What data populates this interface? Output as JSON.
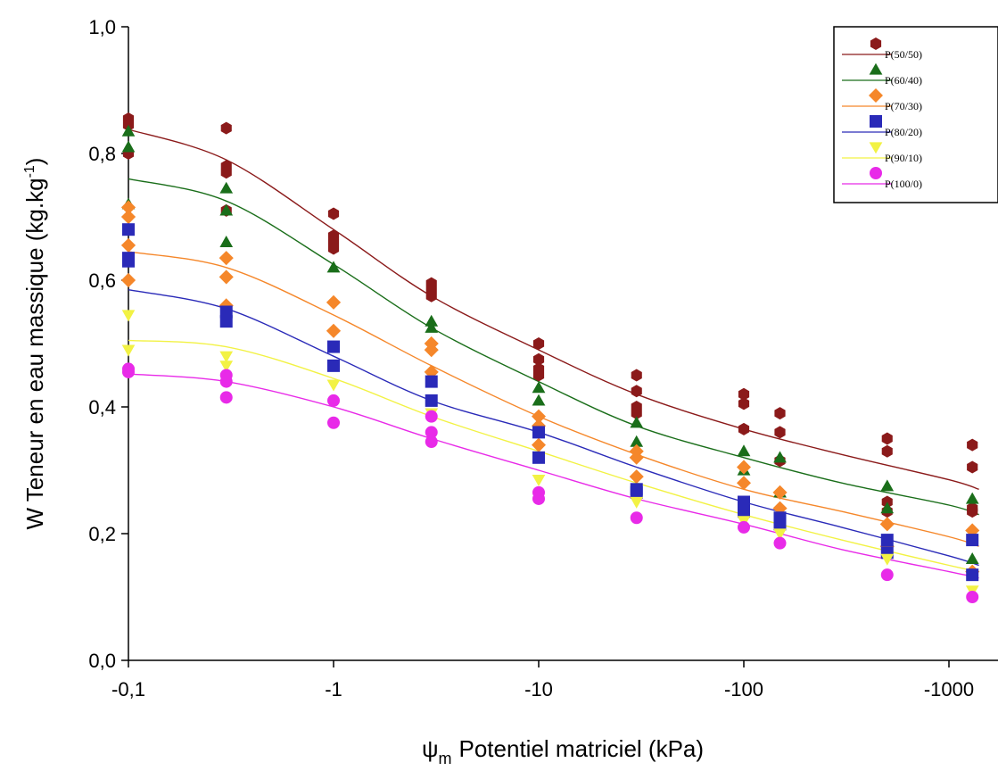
{
  "chart_data": {
    "type": "scatter",
    "xlabel_symbol": "ψ",
    "xlabel_subscript": "m",
    "xlabel_text": "Potentiel matriciel (kPa)",
    "ylabel_main": "W Teneur en eau massique (kg.kg",
    "ylabel_sup": "-1",
    "ylabel_close": ")",
    "x_scale": "log",
    "x_ticks": [
      {
        "value": -0.1,
        "label": "-0,1"
      },
      {
        "value": -1,
        "label": "-1"
      },
      {
        "value": -10,
        "label": "-10"
      },
      {
        "value": -100,
        "label": "-100"
      },
      {
        "value": -1000,
        "label": "-1000"
      }
    ],
    "xlim": [
      -0.1,
      -1400
    ],
    "ylim": [
      0,
      1
    ],
    "y_ticks": [
      {
        "value": 0,
        "label": "0,0"
      },
      {
        "value": 0.2,
        "label": "0,2"
      },
      {
        "value": 0.4,
        "label": "0,4"
      },
      {
        "value": 0.6,
        "label": "0,6"
      },
      {
        "value": 0.8,
        "label": "0,8"
      },
      {
        "value": 1.0,
        "label": "1,0"
      }
    ],
    "grid": false,
    "legend_position": "top-right",
    "series": [
      {
        "name": "P(50/50)",
        "color": "#8b1a1a",
        "marker": "hexagon",
        "points": [
          [
            -0.1,
            0.855
          ],
          [
            -0.1,
            0.845
          ],
          [
            -0.1,
            0.8
          ],
          [
            -0.3,
            0.84
          ],
          [
            -0.3,
            0.78
          ],
          [
            -0.3,
            0.77
          ],
          [
            -0.3,
            0.71
          ],
          [
            -1,
            0.705
          ],
          [
            -1,
            0.67
          ],
          [
            -1,
            0.66
          ],
          [
            -1,
            0.65
          ],
          [
            -3,
            0.595
          ],
          [
            -3,
            0.585
          ],
          [
            -3,
            0.575
          ],
          [
            -10,
            0.5
          ],
          [
            -10,
            0.475
          ],
          [
            -10,
            0.46
          ],
          [
            -10,
            0.45
          ],
          [
            -30,
            0.45
          ],
          [
            -30,
            0.425
          ],
          [
            -30,
            0.4
          ],
          [
            -30,
            0.39
          ],
          [
            -100,
            0.42
          ],
          [
            -100,
            0.405
          ],
          [
            -100,
            0.365
          ],
          [
            -150,
            0.39
          ],
          [
            -150,
            0.36
          ],
          [
            -150,
            0.315
          ],
          [
            -500,
            0.35
          ],
          [
            -500,
            0.33
          ],
          [
            -500,
            0.25
          ],
          [
            -500,
            0.235
          ],
          [
            -1300,
            0.34
          ],
          [
            -1300,
            0.305
          ],
          [
            -1300,
            0.24
          ],
          [
            -1300,
            0.235
          ]
        ],
        "curve": [
          [
            -0.1,
            0.838
          ],
          [
            -0.3,
            0.79
          ],
          [
            -1,
            0.68
          ],
          [
            -3,
            0.575
          ],
          [
            -10,
            0.49
          ],
          [
            -30,
            0.42
          ],
          [
            -100,
            0.365
          ],
          [
            -300,
            0.325
          ],
          [
            -1000,
            0.285
          ],
          [
            -1400,
            0.27
          ]
        ]
      },
      {
        "name": "P(60/40)",
        "color": "#1a6e1a",
        "marker": "triangle-up",
        "points": [
          [
            -0.1,
            0.835
          ],
          [
            -0.1,
            0.81
          ],
          [
            -0.1,
            0.72
          ],
          [
            -0.3,
            0.745
          ],
          [
            -0.3,
            0.71
          ],
          [
            -0.3,
            0.66
          ],
          [
            -1,
            0.62
          ],
          [
            -3,
            0.535
          ],
          [
            -3,
            0.525
          ],
          [
            -10,
            0.43
          ],
          [
            -10,
            0.41
          ],
          [
            -30,
            0.375
          ],
          [
            -30,
            0.345
          ],
          [
            -100,
            0.33
          ],
          [
            -100,
            0.3
          ],
          [
            -150,
            0.32
          ],
          [
            -150,
            0.265
          ],
          [
            -500,
            0.275
          ],
          [
            -500,
            0.24
          ],
          [
            -1300,
            0.255
          ],
          [
            -1300,
            0.16
          ]
        ],
        "curve": [
          [
            -0.1,
            0.76
          ],
          [
            -0.3,
            0.725
          ],
          [
            -1,
            0.625
          ],
          [
            -3,
            0.525
          ],
          [
            -10,
            0.44
          ],
          [
            -30,
            0.37
          ],
          [
            -100,
            0.32
          ],
          [
            -300,
            0.28
          ],
          [
            -1000,
            0.245
          ],
          [
            -1400,
            0.23
          ]
        ]
      },
      {
        "name": "P(70/30)",
        "color": "#f5872a",
        "marker": "diamond",
        "points": [
          [
            -0.1,
            0.715
          ],
          [
            -0.1,
            0.7
          ],
          [
            -0.1,
            0.655
          ],
          [
            -0.1,
            0.6
          ],
          [
            -0.3,
            0.635
          ],
          [
            -0.3,
            0.605
          ],
          [
            -0.3,
            0.56
          ],
          [
            -1,
            0.565
          ],
          [
            -1,
            0.52
          ],
          [
            -3,
            0.5
          ],
          [
            -3,
            0.49
          ],
          [
            -3,
            0.455
          ],
          [
            -10,
            0.385
          ],
          [
            -10,
            0.37
          ],
          [
            -10,
            0.34
          ],
          [
            -30,
            0.33
          ],
          [
            -30,
            0.32
          ],
          [
            -30,
            0.29
          ],
          [
            -100,
            0.305
          ],
          [
            -100,
            0.28
          ],
          [
            -150,
            0.265
          ],
          [
            -150,
            0.24
          ],
          [
            -500,
            0.215
          ],
          [
            -500,
            0.18
          ],
          [
            -1300,
            0.205
          ],
          [
            -1300,
            0.14
          ]
        ],
        "curve": [
          [
            -0.1,
            0.645
          ],
          [
            -0.3,
            0.62
          ],
          [
            -1,
            0.545
          ],
          [
            -3,
            0.465
          ],
          [
            -10,
            0.385
          ],
          [
            -30,
            0.325
          ],
          [
            -100,
            0.27
          ],
          [
            -300,
            0.235
          ],
          [
            -1000,
            0.195
          ],
          [
            -1400,
            0.18
          ]
        ]
      },
      {
        "name": "P(80/20)",
        "color": "#2a2ab8",
        "marker": "square",
        "points": [
          [
            -0.1,
            0.68
          ],
          [
            -0.1,
            0.635
          ],
          [
            -0.1,
            0.63
          ],
          [
            -0.3,
            0.55
          ],
          [
            -0.3,
            0.535
          ],
          [
            -1,
            0.495
          ],
          [
            -1,
            0.465
          ],
          [
            -3,
            0.44
          ],
          [
            -3,
            0.41
          ],
          [
            -10,
            0.36
          ],
          [
            -10,
            0.32
          ],
          [
            -30,
            0.27
          ],
          [
            -30,
            0.265
          ],
          [
            -100,
            0.25
          ],
          [
            -100,
            0.235
          ],
          [
            -150,
            0.225
          ],
          [
            -150,
            0.215
          ],
          [
            -500,
            0.19
          ],
          [
            -500,
            0.17
          ],
          [
            -1300,
            0.19
          ],
          [
            -1300,
            0.135
          ]
        ],
        "curve": [
          [
            -0.1,
            0.585
          ],
          [
            -0.3,
            0.555
          ],
          [
            -1,
            0.48
          ],
          [
            -3,
            0.41
          ],
          [
            -10,
            0.36
          ],
          [
            -30,
            0.305
          ],
          [
            -100,
            0.25
          ],
          [
            -300,
            0.21
          ],
          [
            -1000,
            0.165
          ],
          [
            -1400,
            0.15
          ]
        ]
      },
      {
        "name": "P(90/10)",
        "color": "#f2f244",
        "marker": "triangle-down",
        "points": [
          [
            -0.1,
            0.545
          ],
          [
            -0.1,
            0.49
          ],
          [
            -0.3,
            0.48
          ],
          [
            -0.3,
            0.465
          ],
          [
            -1,
            0.435
          ],
          [
            -3,
            0.39
          ],
          [
            -10,
            0.285
          ],
          [
            -30,
            0.25
          ],
          [
            -100,
            0.22
          ],
          [
            -150,
            0.2
          ],
          [
            -500,
            0.16
          ],
          [
            -1300,
            0.11
          ]
        ],
        "curve": [
          [
            -0.1,
            0.505
          ],
          [
            -0.3,
            0.495
          ],
          [
            -1,
            0.445
          ],
          [
            -3,
            0.385
          ],
          [
            -10,
            0.33
          ],
          [
            -30,
            0.28
          ],
          [
            -100,
            0.23
          ],
          [
            -300,
            0.19
          ],
          [
            -1000,
            0.15
          ],
          [
            -1400,
            0.14
          ]
        ]
      },
      {
        "name": "P(100/0)",
        "color": "#e82ae8",
        "marker": "circle",
        "points": [
          [
            -0.1,
            0.46
          ],
          [
            -0.1,
            0.455
          ],
          [
            -0.3,
            0.45
          ],
          [
            -0.3,
            0.44
          ],
          [
            -0.3,
            0.415
          ],
          [
            -1,
            0.41
          ],
          [
            -1,
            0.375
          ],
          [
            -3,
            0.385
          ],
          [
            -3,
            0.36
          ],
          [
            -3,
            0.345
          ],
          [
            -10,
            0.265
          ],
          [
            -10,
            0.255
          ],
          [
            -30,
            0.225
          ],
          [
            -100,
            0.21
          ],
          [
            -150,
            0.185
          ],
          [
            -500,
            0.135
          ],
          [
            -1300,
            0.1
          ]
        ],
        "curve": [
          [
            -0.1,
            0.452
          ],
          [
            -0.3,
            0.44
          ],
          [
            -1,
            0.4
          ],
          [
            -3,
            0.35
          ],
          [
            -10,
            0.3
          ],
          [
            -30,
            0.255
          ],
          [
            -100,
            0.215
          ],
          [
            -300,
            0.175
          ],
          [
            -1000,
            0.14
          ],
          [
            -1400,
            0.13
          ]
        ]
      }
    ]
  }
}
